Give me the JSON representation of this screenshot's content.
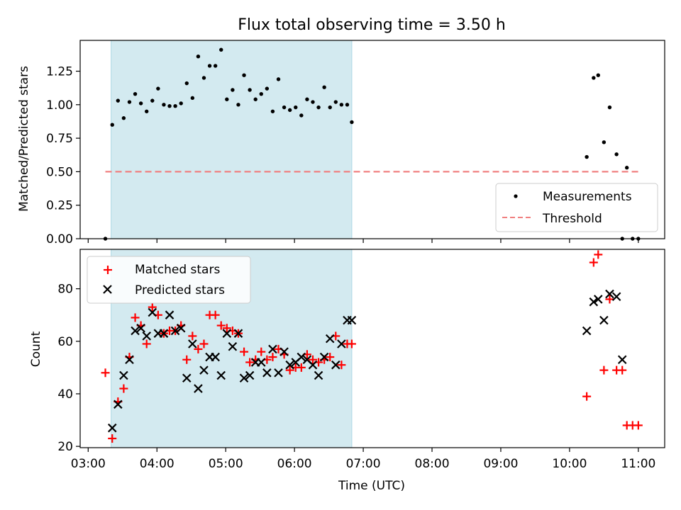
{
  "chart_data": [
    {
      "type": "scatter",
      "title": "Flux total observing time = 3.50 h",
      "xlabel": "",
      "ylabel": "Matched/Predicted stars",
      "xlim": [
        "02:53",
        "11:23"
      ],
      "ylim": [
        0,
        1.48
      ],
      "xticks": [
        "03:00",
        "04:00",
        "05:00",
        "06:00",
        "07:00",
        "08:00",
        "09:00",
        "10:00",
        "11:00"
      ],
      "yticks": [
        "0.00",
        "0.25",
        "0.50",
        "0.75",
        "1.00",
        "1.25"
      ],
      "shaded_region": {
        "x_start": "03:20",
        "x_end": "06:50",
        "color": "#d3eaf0"
      },
      "legend_position": "lower right",
      "series": [
        {
          "name": "Measurements",
          "marker": "dot",
          "color": "#000000",
          "x": [
            "03:15",
            "03:21",
            "03:26",
            "03:31",
            "03:36",
            "03:41",
            "03:46",
            "03:51",
            "03:56",
            "04:01",
            "04:06",
            "04:11",
            "04:16",
            "04:21",
            "04:26",
            "04:31",
            "04:36",
            "04:41",
            "04:46",
            "04:51",
            "04:56",
            "05:01",
            "05:06",
            "05:11",
            "05:16",
            "05:21",
            "05:26",
            "05:31",
            "05:36",
            "05:41",
            "05:46",
            "05:51",
            "05:56",
            "06:01",
            "06:06",
            "06:11",
            "06:16",
            "06:21",
            "06:26",
            "06:31",
            "06:36",
            "06:41",
            "06:46",
            "06:50",
            "10:15",
            "10:21",
            "10:25",
            "10:30",
            "10:35",
            "10:41",
            "10:46",
            "10:50",
            "10:55",
            "11:00"
          ],
          "y": [
            0.0,
            0.85,
            1.03,
            0.9,
            1.02,
            1.08,
            1.01,
            0.95,
            1.03,
            1.12,
            1.0,
            0.99,
            0.99,
            1.01,
            1.16,
            1.05,
            1.36,
            1.2,
            1.29,
            1.29,
            1.41,
            1.04,
            1.11,
            1.0,
            1.22,
            1.11,
            1.04,
            1.08,
            1.12,
            0.95,
            1.19,
            0.98,
            0.96,
            0.98,
            0.92,
            1.04,
            1.02,
            0.98,
            1.13,
            0.98,
            1.02,
            1.0,
            1.0,
            0.87,
            0.61,
            1.2,
            1.22,
            0.72,
            0.98,
            0.63,
            0.0,
            0.53,
            0.0,
            0.0
          ]
        },
        {
          "name": "Threshold",
          "style": "dashed",
          "color": "#f08080",
          "x": [
            "03:15",
            "11:00"
          ],
          "y": [
            0.5,
            0.5
          ]
        }
      ]
    },
    {
      "type": "scatter",
      "title": "",
      "xlabel": "Time (UTC)",
      "ylabel": "Count",
      "xlim": [
        "02:53",
        "11:23"
      ],
      "ylim": [
        19.5,
        95
      ],
      "xticks": [
        "03:00",
        "04:00",
        "05:00",
        "06:00",
        "07:00",
        "08:00",
        "09:00",
        "10:00",
        "11:00"
      ],
      "yticks": [
        "20",
        "40",
        "60",
        "80"
      ],
      "shaded_region": {
        "x_start": "03:20",
        "x_end": "06:50",
        "color": "#d3eaf0"
      },
      "legend_position": "upper left",
      "series": [
        {
          "name": "Matched stars",
          "marker": "plus",
          "color": "#ff0000",
          "x": [
            "03:15",
            "03:21",
            "03:26",
            "03:31",
            "03:36",
            "03:41",
            "03:46",
            "03:51",
            "03:56",
            "04:01",
            "04:06",
            "04:11",
            "04:16",
            "04:21",
            "04:26",
            "04:31",
            "04:36",
            "04:41",
            "04:46",
            "04:51",
            "04:56",
            "05:01",
            "05:06",
            "05:11",
            "05:16",
            "05:21",
            "05:26",
            "05:31",
            "05:36",
            "05:41",
            "05:46",
            "05:51",
            "05:56",
            "06:01",
            "06:06",
            "06:11",
            "06:16",
            "06:21",
            "06:26",
            "06:31",
            "06:36",
            "06:41",
            "06:46",
            "06:50",
            "10:15",
            "10:21",
            "10:25",
            "10:30",
            "10:35",
            "10:41",
            "10:46",
            "10:50",
            "10:55",
            "11:00"
          ],
          "y": [
            48,
            23,
            37,
            42,
            54,
            69,
            66,
            59,
            73,
            70,
            63,
            64,
            64,
            66,
            53,
            62,
            57,
            59,
            70,
            70,
            66,
            65,
            64,
            63,
            56,
            52,
            53,
            56,
            53,
            54,
            57,
            55,
            49,
            50,
            50,
            55,
            53,
            52,
            53,
            54,
            62,
            51,
            59,
            59,
            39,
            90,
            93,
            49,
            76,
            49,
            49,
            28,
            28,
            28
          ]
        },
        {
          "name": "Predicted stars",
          "marker": "x",
          "color": "#000000",
          "x": [
            "03:21",
            "03:26",
            "03:31",
            "03:36",
            "03:41",
            "03:46",
            "03:51",
            "03:56",
            "04:01",
            "04:06",
            "04:11",
            "04:16",
            "04:21",
            "04:26",
            "04:31",
            "04:36",
            "04:41",
            "04:46",
            "04:51",
            "04:56",
            "05:01",
            "05:06",
            "05:11",
            "05:16",
            "05:21",
            "05:26",
            "05:31",
            "05:36",
            "05:41",
            "05:46",
            "05:51",
            "05:56",
            "06:01",
            "06:06",
            "06:11",
            "06:16",
            "06:21",
            "06:26",
            "06:31",
            "06:36",
            "06:41",
            "06:46",
            "06:50",
            "10:15",
            "10:21",
            "10:25",
            "10:30",
            "10:35",
            "10:41",
            "10:46"
          ],
          "y": [
            27,
            36,
            47,
            53,
            64,
            65,
            62,
            71,
            63,
            63,
            70,
            64,
            65,
            46,
            59,
            42,
            49,
            54,
            54,
            47,
            63,
            58,
            63,
            46,
            47,
            52,
            52,
            48,
            57,
            48,
            56,
            51,
            52,
            54,
            53,
            51,
            47,
            54,
            61,
            51,
            59,
            68,
            68,
            64,
            75,
            76,
            68,
            78,
            77,
            53
          ]
        }
      ]
    }
  ]
}
